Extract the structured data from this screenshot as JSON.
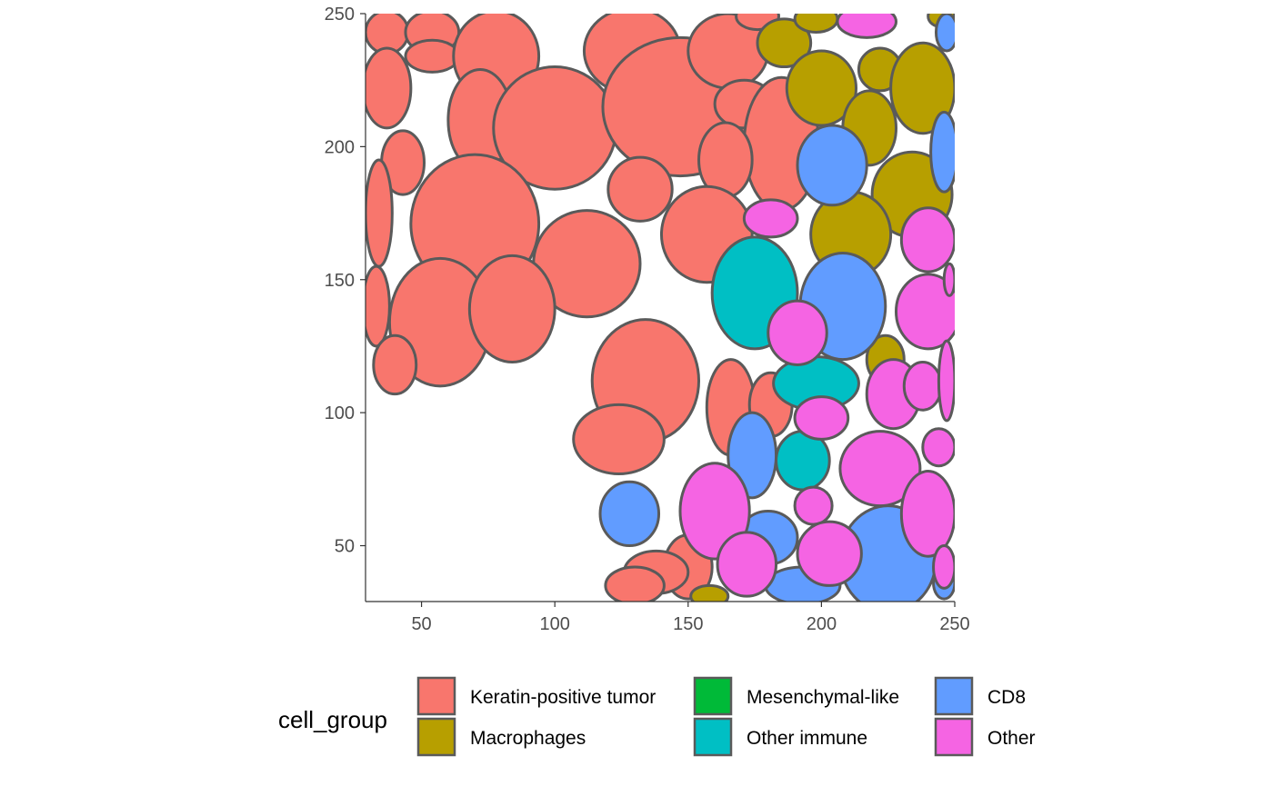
{
  "chart_data": {
    "type": "segmentation_map",
    "xlim": [
      29,
      250
    ],
    "ylim": [
      29,
      250
    ],
    "x_ticks": [
      "50",
      "100",
      "150",
      "200",
      "250"
    ],
    "y_ticks": [
      "50",
      "100",
      "150",
      "200",
      "250"
    ],
    "grid": false,
    "legend_position": "bottom",
    "legend": {
      "title": "cell_group",
      "items": [
        {
          "key": "keratin",
          "label": "Keratin-positive tumor",
          "color": "#F8766D"
        },
        {
          "key": "macro",
          "label": "Macrophages",
          "color": "#B79F00"
        },
        {
          "key": "mesen",
          "label": "Mesenchymal-like",
          "color": "#00BA38"
        },
        {
          "key": "immune",
          "label": "Other immune",
          "color": "#00BFC4"
        },
        {
          "key": "cd8",
          "label": "CD8",
          "color": "#619CFF"
        },
        {
          "key": "other",
          "label": "Other",
          "color": "#F564E3"
        }
      ]
    },
    "cells": [
      {
        "group": "keratin",
        "x": 37,
        "y": 243,
        "rx": 8,
        "ry": 8
      },
      {
        "group": "keratin",
        "x": 54,
        "y": 243,
        "rx": 10,
        "ry": 8
      },
      {
        "group": "keratin",
        "x": 37,
        "y": 222,
        "rx": 9,
        "ry": 15
      },
      {
        "group": "keratin",
        "x": 54,
        "y": 234,
        "rx": 10,
        "ry": 6
      },
      {
        "group": "keratin",
        "x": 78,
        "y": 234,
        "rx": 16,
        "ry": 17
      },
      {
        "group": "keratin",
        "x": 72,
        "y": 210,
        "rx": 12,
        "ry": 19
      },
      {
        "group": "keratin",
        "x": 100,
        "y": 207,
        "rx": 23,
        "ry": 23
      },
      {
        "group": "keratin",
        "x": 129,
        "y": 236,
        "rx": 18,
        "ry": 16
      },
      {
        "group": "keratin",
        "x": 147,
        "y": 215,
        "rx": 29,
        "ry": 26
      },
      {
        "group": "keratin",
        "x": 165,
        "y": 236,
        "rx": 15,
        "ry": 14
      },
      {
        "group": "keratin",
        "x": 171,
        "y": 216,
        "rx": 11,
        "ry": 9
      },
      {
        "group": "keratin",
        "x": 176,
        "y": 249,
        "rx": 8,
        "ry": 5
      },
      {
        "group": "keratin",
        "x": 185,
        "y": 201,
        "rx": 14,
        "ry": 25
      },
      {
        "group": "keratin",
        "x": 164,
        "y": 195,
        "rx": 10,
        "ry": 14
      },
      {
        "group": "keratin",
        "x": 43,
        "y": 194,
        "rx": 8,
        "ry": 12
      },
      {
        "group": "keratin",
        "x": 34,
        "y": 175,
        "rx": 5,
        "ry": 20
      },
      {
        "group": "keratin",
        "x": 70,
        "y": 171,
        "rx": 24,
        "ry": 26
      },
      {
        "group": "keratin",
        "x": 132,
        "y": 184,
        "rx": 12,
        "ry": 12
      },
      {
        "group": "keratin",
        "x": 112,
        "y": 156,
        "rx": 20,
        "ry": 20
      },
      {
        "group": "keratin",
        "x": 157,
        "y": 167,
        "rx": 17,
        "ry": 18
      },
      {
        "group": "keratin",
        "x": 57,
        "y": 134,
        "rx": 19,
        "ry": 24
      },
      {
        "group": "keratin",
        "x": 84,
        "y": 139,
        "rx": 16,
        "ry": 20
      },
      {
        "group": "keratin",
        "x": 33,
        "y": 140,
        "rx": 5,
        "ry": 15
      },
      {
        "group": "keratin",
        "x": 40,
        "y": 118,
        "rx": 8,
        "ry": 11
      },
      {
        "group": "keratin",
        "x": 134,
        "y": 112,
        "rx": 20,
        "ry": 23
      },
      {
        "group": "keratin",
        "x": 124,
        "y": 90,
        "rx": 17,
        "ry": 13
      },
      {
        "group": "keratin",
        "x": 166,
        "y": 102,
        "rx": 9,
        "ry": 18
      },
      {
        "group": "keratin",
        "x": 181,
        "y": 103,
        "rx": 8,
        "ry": 12
      },
      {
        "group": "keratin",
        "x": 150,
        "y": 42,
        "rx": 9,
        "ry": 12
      },
      {
        "group": "keratin",
        "x": 138,
        "y": 40,
        "rx": 12,
        "ry": 8
      },
      {
        "group": "keratin",
        "x": 130,
        "y": 35,
        "rx": 11,
        "ry": 7
      },
      {
        "group": "macro",
        "x": 186,
        "y": 239,
        "rx": 10,
        "ry": 9
      },
      {
        "group": "macro",
        "x": 198,
        "y": 248,
        "rx": 8,
        "ry": 5
      },
      {
        "group": "macro",
        "x": 200,
        "y": 222,
        "rx": 13,
        "ry": 14
      },
      {
        "group": "macro",
        "x": 222,
        "y": 229,
        "rx": 8,
        "ry": 8
      },
      {
        "group": "macro",
        "x": 238,
        "y": 222,
        "rx": 12,
        "ry": 17
      },
      {
        "group": "macro",
        "x": 218,
        "y": 207,
        "rx": 10,
        "ry": 14
      },
      {
        "group": "macro",
        "x": 234,
        "y": 182,
        "rx": 15,
        "ry": 16
      },
      {
        "group": "macro",
        "x": 211,
        "y": 167,
        "rx": 15,
        "ry": 16
      },
      {
        "group": "macro",
        "x": 224,
        "y": 120,
        "rx": 7,
        "ry": 9
      },
      {
        "group": "macro",
        "x": 158,
        "y": 31,
        "rx": 7,
        "ry": 4
      },
      {
        "group": "macro",
        "x": 245,
        "y": 249,
        "rx": 5,
        "ry": 4
      },
      {
        "group": "mesen",
        "x": 228,
        "y": 30,
        "rx": 5,
        "ry": 3
      },
      {
        "group": "immune",
        "x": 175,
        "y": 145,
        "rx": 16,
        "ry": 21
      },
      {
        "group": "immune",
        "x": 198,
        "y": 111,
        "rx": 16,
        "ry": 10
      },
      {
        "group": "immune",
        "x": 193,
        "y": 82,
        "rx": 10,
        "ry": 11
      },
      {
        "group": "cd8",
        "x": 204,
        "y": 193,
        "rx": 13,
        "ry": 15
      },
      {
        "group": "cd8",
        "x": 246,
        "y": 198,
        "rx": 5,
        "ry": 15
      },
      {
        "group": "cd8",
        "x": 247,
        "y": 243,
        "rx": 4,
        "ry": 7
      },
      {
        "group": "cd8",
        "x": 208,
        "y": 140,
        "rx": 16,
        "ry": 20
      },
      {
        "group": "cd8",
        "x": 174,
        "y": 84,
        "rx": 9,
        "ry": 16
      },
      {
        "group": "cd8",
        "x": 128,
        "y": 62,
        "rx": 11,
        "ry": 12
      },
      {
        "group": "cd8",
        "x": 180,
        "y": 53,
        "rx": 11,
        "ry": 10
      },
      {
        "group": "cd8",
        "x": 225,
        "y": 45,
        "rx": 18,
        "ry": 20
      },
      {
        "group": "cd8",
        "x": 193,
        "y": 35,
        "rx": 14,
        "ry": 7
      },
      {
        "group": "cd8",
        "x": 246,
        "y": 36,
        "rx": 4,
        "ry": 6
      },
      {
        "group": "other",
        "x": 217,
        "y": 247,
        "rx": 11,
        "ry": 6
      },
      {
        "group": "other",
        "x": 181,
        "y": 173,
        "rx": 10,
        "ry": 7
      },
      {
        "group": "other",
        "x": 240,
        "y": 165,
        "rx": 10,
        "ry": 12
      },
      {
        "group": "other",
        "x": 240,
        "y": 138,
        "rx": 12,
        "ry": 14
      },
      {
        "group": "other",
        "x": 248,
        "y": 150,
        "rx": 2,
        "ry": 6
      },
      {
        "group": "other",
        "x": 191,
        "y": 130,
        "rx": 11,
        "ry": 12
      },
      {
        "group": "other",
        "x": 227,
        "y": 107,
        "rx": 10,
        "ry": 13
      },
      {
        "group": "other",
        "x": 238,
        "y": 110,
        "rx": 7,
        "ry": 9
      },
      {
        "group": "other",
        "x": 247,
        "y": 112,
        "rx": 3,
        "ry": 15
      },
      {
        "group": "other",
        "x": 200,
        "y": 98,
        "rx": 10,
        "ry": 8
      },
      {
        "group": "other",
        "x": 222,
        "y": 79,
        "rx": 15,
        "ry": 14
      },
      {
        "group": "other",
        "x": 244,
        "y": 87,
        "rx": 6,
        "ry": 7
      },
      {
        "group": "other",
        "x": 240,
        "y": 62,
        "rx": 10,
        "ry": 16
      },
      {
        "group": "other",
        "x": 160,
        "y": 63,
        "rx": 13,
        "ry": 18
      },
      {
        "group": "other",
        "x": 197,
        "y": 65,
        "rx": 7,
        "ry": 7
      },
      {
        "group": "other",
        "x": 203,
        "y": 47,
        "rx": 12,
        "ry": 12
      },
      {
        "group": "other",
        "x": 172,
        "y": 43,
        "rx": 11,
        "ry": 12
      },
      {
        "group": "other",
        "x": 246,
        "y": 42,
        "rx": 4,
        "ry": 8
      }
    ]
  }
}
